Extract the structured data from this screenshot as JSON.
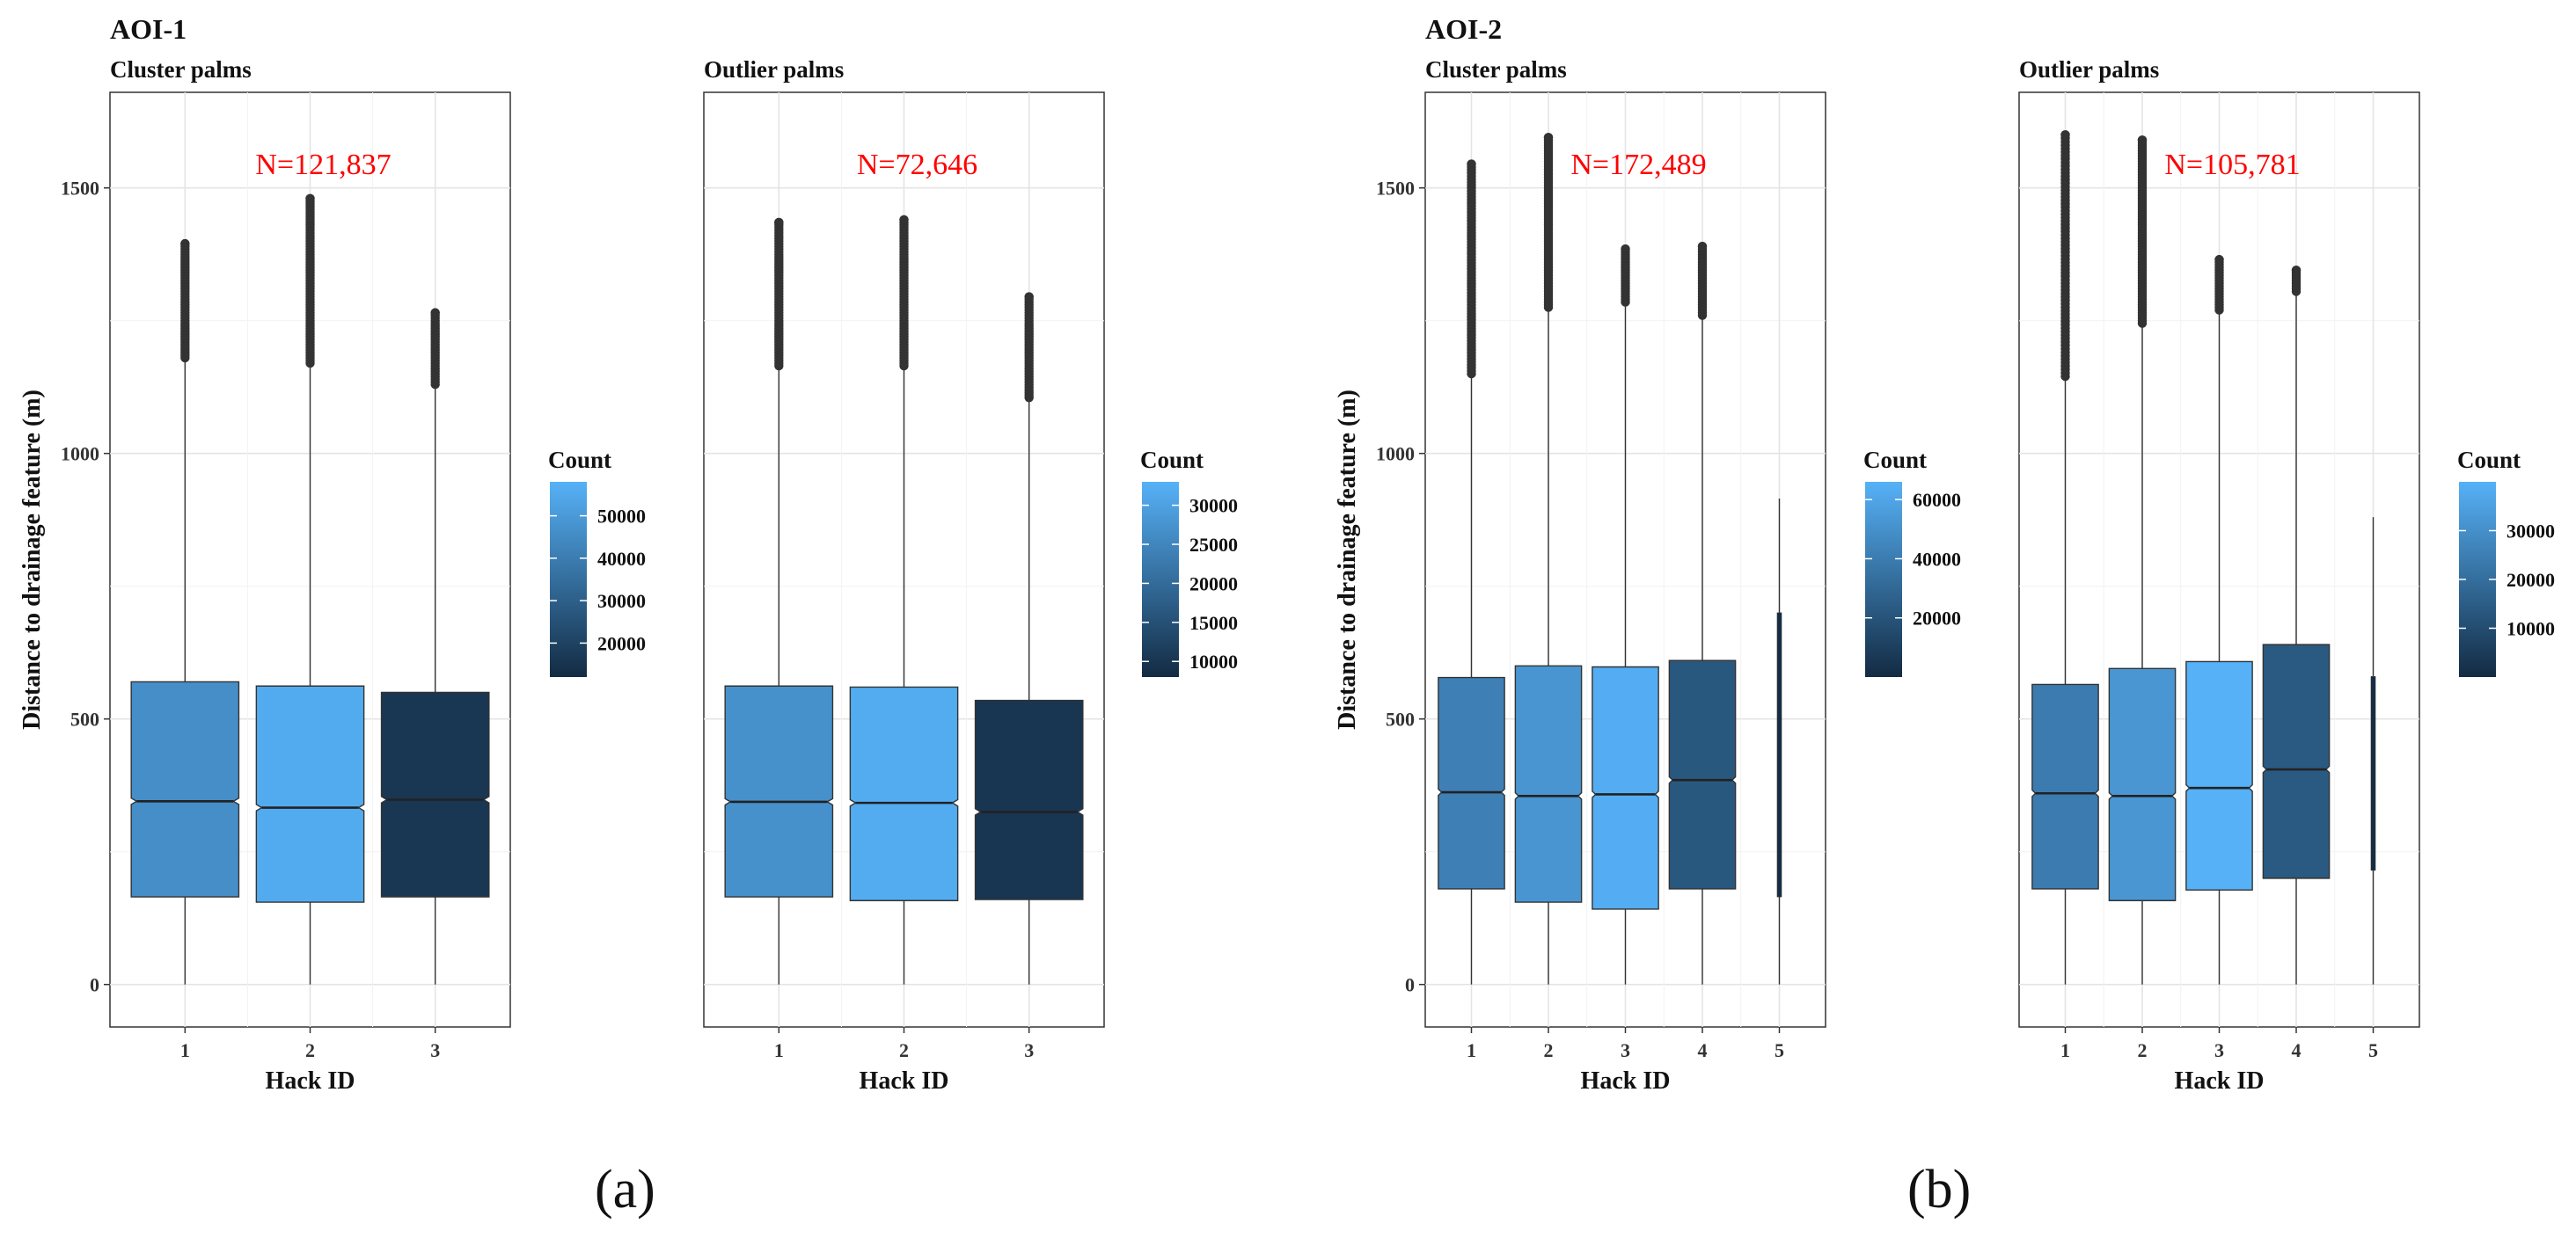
{
  "figure": {
    "caption_a": "(a)",
    "caption_b": "(b)"
  },
  "chart_data": [
    {
      "type": "boxplot",
      "group": "AOI-1",
      "title": "Cluster palms",
      "n_label": "N=121,837",
      "xlabel": "Hack ID",
      "ylabel": "Distance to drainage feature (m)",
      "ylim": [
        -80,
        1680
      ],
      "yticks": [
        0,
        500,
        1000,
        1500
      ],
      "legend": {
        "title": "Count",
        "min": 12000,
        "max": 58000,
        "ticks": [
          20000,
          30000,
          40000,
          50000
        ]
      },
      "boxes": [
        {
          "id": "1",
          "count": 46000,
          "min": 0,
          "q1": 165,
          "median": 345,
          "q3": 570,
          "max": 1175,
          "outlier_min": 1180,
          "outlier_max": 1395
        },
        {
          "id": "2",
          "count": 56000,
          "min": 0,
          "q1": 155,
          "median": 333,
          "q3": 562,
          "max": 1165,
          "outlier_min": 1170,
          "outlier_max": 1480
        },
        {
          "id": "3",
          "count": 16000,
          "min": 0,
          "q1": 165,
          "median": 348,
          "q3": 550,
          "max": 1125,
          "outlier_min": 1130,
          "outlier_max": 1265
        }
      ]
    },
    {
      "type": "boxplot",
      "group": "AOI-1",
      "title": "Outlier palms",
      "n_label": "N=72,646",
      "xlabel": "Hack ID",
      "ylabel": "",
      "ylim": [
        -80,
        1680
      ],
      "yticks": [],
      "legend": {
        "title": "Count",
        "min": 8000,
        "max": 33000,
        "ticks": [
          10000,
          15000,
          20000,
          25000,
          30000
        ]
      },
      "boxes": [
        {
          "id": "1",
          "count": 27000,
          "min": 0,
          "q1": 165,
          "median": 344,
          "q3": 562,
          "max": 1160,
          "outlier_min": 1165,
          "outlier_max": 1435
        },
        {
          "id": "2",
          "count": 32000,
          "min": 0,
          "q1": 158,
          "median": 342,
          "q3": 560,
          "max": 1160,
          "outlier_min": 1165,
          "outlier_max": 1440
        },
        {
          "id": "3",
          "count": 10000,
          "min": 0,
          "q1": 160,
          "median": 325,
          "q3": 535,
          "max": 1100,
          "outlier_min": 1105,
          "outlier_max": 1295
        }
      ]
    },
    {
      "type": "boxplot",
      "group": "AOI-2",
      "title": "Cluster palms",
      "n_label": "N=172,489",
      "xlabel": "Hack ID",
      "ylabel": "Distance to drainage feature (m)",
      "ylim": [
        -80,
        1680
      ],
      "yticks": [
        0,
        500,
        1000,
        1500
      ],
      "legend": {
        "title": "Count",
        "min": 0,
        "max": 66000,
        "ticks": [
          20000,
          40000,
          60000
        ]
      },
      "boxes": [
        {
          "id": "1",
          "count": 42000,
          "min": 0,
          "q1": 180,
          "median": 362,
          "q3": 578,
          "max": 1145,
          "outlier_min": 1150,
          "outlier_max": 1545
        },
        {
          "id": "2",
          "count": 52000,
          "min": 0,
          "q1": 155,
          "median": 355,
          "q3": 600,
          "max": 1270,
          "outlier_min": 1275,
          "outlier_max": 1595
        },
        {
          "id": "3",
          "count": 64000,
          "min": 0,
          "q1": 142,
          "median": 358,
          "q3": 598,
          "max": 1280,
          "outlier_min": 1285,
          "outlier_max": 1385
        },
        {
          "id": "4",
          "count": 22000,
          "min": 0,
          "q1": 180,
          "median": 385,
          "q3": 610,
          "max": 1255,
          "outlier_min": 1260,
          "outlier_max": 1390
        },
        {
          "id": "5",
          "count": 500,
          "min": 0,
          "q1": 165,
          "median": 460,
          "q3": 700,
          "max": 915
        }
      ]
    },
    {
      "type": "boxplot",
      "group": "AOI-2",
      "title": "Outlier palms",
      "n_label": "N=105,781",
      "xlabel": "Hack ID",
      "ylabel": "",
      "ylim": [
        -80,
        1680
      ],
      "yticks": [],
      "legend": {
        "title": "Count",
        "min": 0,
        "max": 40000,
        "ticks": [
          10000,
          20000,
          30000
        ]
      },
      "boxes": [
        {
          "id": "1",
          "count": 24000,
          "min": 0,
          "q1": 180,
          "median": 360,
          "q3": 565,
          "max": 1140,
          "outlier_min": 1145,
          "outlier_max": 1600
        },
        {
          "id": "2",
          "count": 32000,
          "min": 0,
          "q1": 158,
          "median": 355,
          "q3": 595,
          "max": 1240,
          "outlier_min": 1245,
          "outlier_max": 1590
        },
        {
          "id": "3",
          "count": 40000,
          "min": 0,
          "q1": 178,
          "median": 370,
          "q3": 608,
          "max": 1265,
          "outlier_min": 1270,
          "outlier_max": 1365
        },
        {
          "id": "4",
          "count": 14000,
          "min": 0,
          "q1": 200,
          "median": 405,
          "q3": 640,
          "max": 1300,
          "outlier_min": 1305,
          "outlier_max": 1345
        },
        {
          "id": "5",
          "count": 500,
          "min": 0,
          "q1": 215,
          "median": 350,
          "q3": 580,
          "max": 880
        }
      ]
    }
  ]
}
